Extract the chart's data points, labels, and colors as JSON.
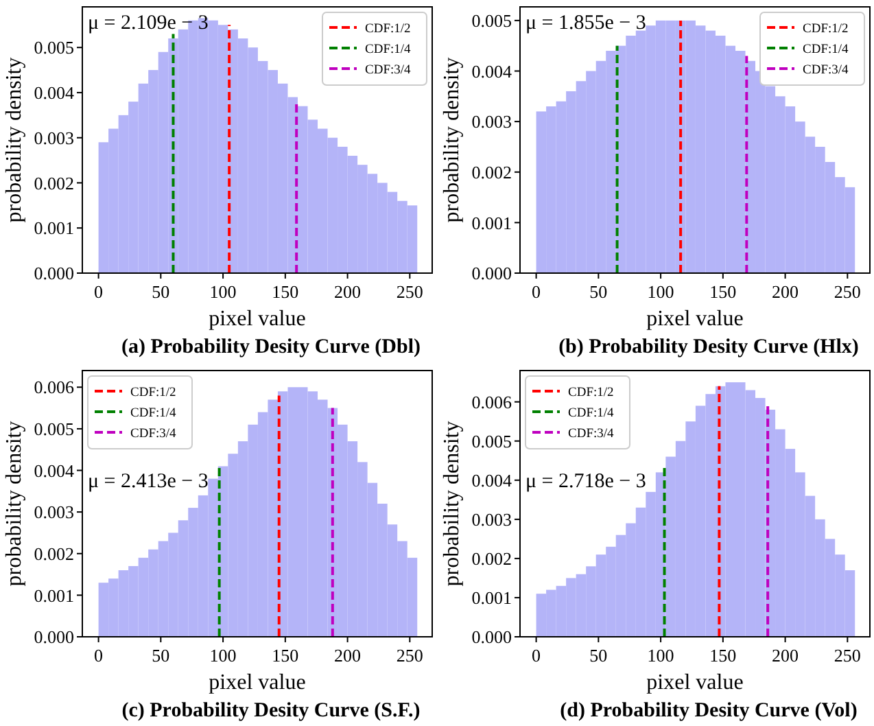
{
  "chart_data": [
    {
      "type": "histogram",
      "title": "(a) Probability Desity Curve (Dbl)",
      "xlabel": "pixel value",
      "ylabel": "probability density",
      "color": "#b4b4f8",
      "legend": "top right",
      "xlim": [
        -13,
        268
      ],
      "ylim": [
        0,
        0.0059
      ],
      "xticks": [
        0,
        50,
        100,
        150,
        200,
        250
      ],
      "yticks": [
        {
          "value": 0,
          "label": "0.000"
        },
        {
          "value": 0.001,
          "label": "0.001"
        },
        {
          "value": 0.002,
          "label": "0.002"
        },
        {
          "value": 0.003,
          "label": "0.003"
        },
        {
          "value": 0.004,
          "label": "0.004"
        },
        {
          "value": 0.005,
          "label": "0.005"
        }
      ],
      "bins": [
        0,
        8,
        16,
        24,
        32,
        40,
        48,
        56,
        64,
        72,
        80,
        88,
        96,
        104,
        112,
        120,
        128,
        136,
        144,
        152,
        160,
        168,
        176,
        184,
        192,
        200,
        208,
        216,
        224,
        232,
        240,
        248,
        256
      ],
      "values": [
        0.0029,
        0.0032,
        0.0035,
        0.0038,
        0.0042,
        0.0045,
        0.0049,
        0.0052,
        0.0054,
        0.0056,
        0.00565,
        0.0056,
        0.0055,
        0.0054,
        0.0052,
        0.005,
        0.0047,
        0.0045,
        0.0042,
        0.0039,
        0.0037,
        0.0034,
        0.0032,
        0.003,
        0.0028,
        0.0026,
        0.0024,
        0.0022,
        0.002,
        0.0018,
        0.0016,
        0.0015
      ],
      "series": [
        {
          "name": "CDF:1/2",
          "type": "line",
          "line_style": "dashed",
          "color": "#ff0000",
          "x": [
            105,
            105
          ],
          "values": [
            0,
            0.0055
          ]
        },
        {
          "name": "CDF:1/4",
          "type": "line",
          "line_style": "dashed",
          "color": "#008000",
          "x": [
            60,
            60
          ],
          "values": [
            0,
            0.0053
          ]
        },
        {
          "name": "CDF:3/4",
          "type": "line",
          "line_style": "dashed",
          "color": "#bf00bf",
          "x": [
            159,
            159
          ],
          "values": [
            0,
            0.0038
          ]
        }
      ],
      "annotations": [
        "μ = 2.109e − 3"
      ]
    },
    {
      "type": "histogram",
      "title": "(b) Probability Desity Curve (Hlx)",
      "xlabel": "pixel value",
      "ylabel": "probability density",
      "color": "#b4b4f8",
      "legend": "top right",
      "xlim": [
        -13,
        268
      ],
      "ylim": [
        0,
        0.00527
      ],
      "xticks": [
        0,
        50,
        100,
        150,
        200,
        250
      ],
      "yticks": [
        {
          "value": 0,
          "label": "0.000"
        },
        {
          "value": 0.001,
          "label": "0.001"
        },
        {
          "value": 0.002,
          "label": "0.002"
        },
        {
          "value": 0.003,
          "label": "0.003"
        },
        {
          "value": 0.004,
          "label": "0.004"
        },
        {
          "value": 0.005,
          "label": "0.005"
        }
      ],
      "bins": [
        0,
        8,
        16,
        24,
        32,
        40,
        48,
        56,
        64,
        72,
        80,
        88,
        96,
        104,
        112,
        120,
        128,
        136,
        144,
        152,
        160,
        168,
        176,
        184,
        192,
        200,
        208,
        216,
        224,
        232,
        240,
        248,
        256
      ],
      "values": [
        0.0032,
        0.0033,
        0.0034,
        0.0036,
        0.0038,
        0.004,
        0.0042,
        0.0044,
        0.0045,
        0.0047,
        0.0048,
        0.0049,
        0.005,
        0.005,
        0.005,
        0.005,
        0.0049,
        0.0048,
        0.0047,
        0.0045,
        0.0044,
        0.0042,
        0.004,
        0.0037,
        0.0035,
        0.0033,
        0.003,
        0.0027,
        0.0025,
        0.0022,
        0.0019,
        0.0017
      ],
      "series": [
        {
          "name": "CDF:1/2",
          "type": "line",
          "line_style": "dashed",
          "color": "#ff0000",
          "x": [
            116,
            116
          ],
          "values": [
            0,
            0.005
          ]
        },
        {
          "name": "CDF:1/4",
          "type": "line",
          "line_style": "dashed",
          "color": "#008000",
          "x": [
            65,
            65
          ],
          "values": [
            0,
            0.0045
          ]
        },
        {
          "name": "CDF:3/4",
          "type": "line",
          "line_style": "dashed",
          "color": "#bf00bf",
          "x": [
            169,
            169
          ],
          "values": [
            0,
            0.0043
          ]
        }
      ],
      "annotations": [
        "μ = 1.855e − 3"
      ]
    },
    {
      "type": "histogram",
      "title": "(c) Probability Desity Curve (S.F.)",
      "xlabel": "pixel value",
      "ylabel": "probability density",
      "color": "#b4b4f8",
      "legend": "top left",
      "xlim": [
        -13,
        268
      ],
      "ylim": [
        0,
        0.0064
      ],
      "xticks": [
        0,
        50,
        100,
        150,
        200,
        250
      ],
      "yticks": [
        {
          "value": 0,
          "label": "0.000"
        },
        {
          "value": 0.001,
          "label": "0.001"
        },
        {
          "value": 0.002,
          "label": "0.002"
        },
        {
          "value": 0.003,
          "label": "0.003"
        },
        {
          "value": 0.004,
          "label": "0.004"
        },
        {
          "value": 0.005,
          "label": "0.005"
        },
        {
          "value": 0.006,
          "label": "0.006"
        }
      ],
      "bins": [
        0,
        8,
        16,
        24,
        32,
        40,
        48,
        56,
        64,
        72,
        80,
        88,
        96,
        104,
        112,
        120,
        128,
        136,
        144,
        152,
        160,
        168,
        176,
        184,
        192,
        200,
        208,
        216,
        224,
        232,
        240,
        248,
        256
      ],
      "values": [
        0.0013,
        0.0014,
        0.0016,
        0.0017,
        0.0019,
        0.0021,
        0.0023,
        0.0025,
        0.0028,
        0.0031,
        0.0034,
        0.0038,
        0.0041,
        0.0044,
        0.0047,
        0.0051,
        0.0054,
        0.0057,
        0.0059,
        0.006,
        0.006,
        0.0059,
        0.0057,
        0.0055,
        0.0051,
        0.0047,
        0.0042,
        0.0037,
        0.0032,
        0.0027,
        0.0023,
        0.0019
      ],
      "series": [
        {
          "name": "CDF:1/2",
          "type": "line",
          "line_style": "dashed",
          "color": "#ff0000",
          "x": [
            145,
            145
          ],
          "values": [
            0,
            0.0058
          ]
        },
        {
          "name": "CDF:1/4",
          "type": "line",
          "line_style": "dashed",
          "color": "#008000",
          "x": [
            97,
            97
          ],
          "values": [
            0,
            0.0041
          ]
        },
        {
          "name": "CDF:3/4",
          "type": "line",
          "line_style": "dashed",
          "color": "#bf00bf",
          "x": [
            188,
            188
          ],
          "values": [
            0,
            0.0055
          ]
        }
      ],
      "annotations": [
        "μ = 2.413e − 3"
      ]
    },
    {
      "type": "histogram",
      "title": "(d) Probability Desity Curve (Vol)",
      "xlabel": "pixel value",
      "ylabel": "probability density",
      "color": "#b4b4f8",
      "legend": "top left",
      "xlim": [
        -13,
        268
      ],
      "ylim": [
        0,
        0.0068
      ],
      "xticks": [
        0,
        50,
        100,
        150,
        200,
        250
      ],
      "yticks": [
        {
          "value": 0,
          "label": "0.000"
        },
        {
          "value": 0.001,
          "label": "0.001"
        },
        {
          "value": 0.002,
          "label": "0.002"
        },
        {
          "value": 0.003,
          "label": "0.003"
        },
        {
          "value": 0.004,
          "label": "0.004"
        },
        {
          "value": 0.005,
          "label": "0.005"
        },
        {
          "value": 0.006,
          "label": "0.006"
        }
      ],
      "bins": [
        0,
        8,
        16,
        24,
        32,
        40,
        48,
        56,
        64,
        72,
        80,
        88,
        96,
        104,
        112,
        120,
        128,
        136,
        144,
        152,
        160,
        168,
        176,
        184,
        192,
        200,
        208,
        216,
        224,
        232,
        240,
        248,
        256
      ],
      "values": [
        0.0011,
        0.0012,
        0.0013,
        0.0015,
        0.0016,
        0.0018,
        0.0021,
        0.0023,
        0.0026,
        0.0029,
        0.0033,
        0.0037,
        0.0042,
        0.0046,
        0.005,
        0.0055,
        0.0059,
        0.0062,
        0.0064,
        0.0065,
        0.0065,
        0.0063,
        0.0061,
        0.0058,
        0.0053,
        0.0048,
        0.0042,
        0.0036,
        0.003,
        0.0025,
        0.0021,
        0.0017
      ],
      "series": [
        {
          "name": "CDF:1/2",
          "type": "line",
          "line_style": "dashed",
          "color": "#ff0000",
          "x": [
            147,
            147
          ],
          "values": [
            0,
            0.0064
          ]
        },
        {
          "name": "CDF:1/4",
          "type": "line",
          "line_style": "dashed",
          "color": "#008000",
          "x": [
            103,
            103
          ],
          "values": [
            0,
            0.0044
          ]
        },
        {
          "name": "CDF:3/4",
          "type": "line",
          "line_style": "dashed",
          "color": "#bf00bf",
          "x": [
            186,
            186
          ],
          "values": [
            0,
            0.0059
          ]
        }
      ],
      "annotations": [
        "μ = 2.718e − 3"
      ]
    }
  ]
}
